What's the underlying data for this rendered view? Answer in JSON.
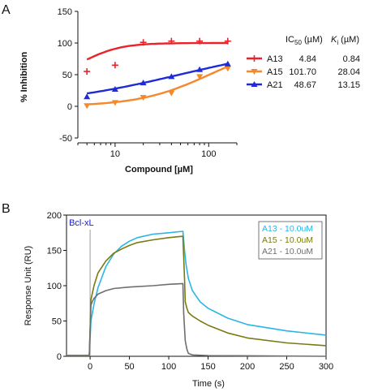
{
  "chart_data": [
    {
      "type": "scatter",
      "panel_label": "A",
      "xlabel": "Compound [µM]",
      "ylabel": "% Inhibition",
      "x_scale": "log",
      "xlim": [
        4,
        200
      ],
      "ylim": [
        -50,
        150
      ],
      "x_ticks": [
        {
          "value": 10,
          "label": "10"
        },
        {
          "value": 100,
          "label": "100"
        }
      ],
      "y_ticks": [
        {
          "value": -50,
          "label": "-50"
        },
        {
          "value": 0,
          "label": "0"
        },
        {
          "value": 50,
          "label": "50"
        },
        {
          "value": 100,
          "label": "100"
        },
        {
          "value": 150,
          "label": "150"
        }
      ],
      "grid": false,
      "legend_position": "right",
      "table_headers": {
        "ic50": "IC50 (µM)",
        "ki": "Ki (µM)"
      },
      "series": [
        {
          "name": "A13",
          "color": "#e8232a",
          "marker": "plus",
          "x": [
            5,
            10,
            20,
            40,
            80,
            160
          ],
          "y": [
            55,
            65,
            101,
            103,
            103,
            103
          ],
          "ic50": "4.84",
          "ki": "0.84",
          "fit": {
            "bottom": 46,
            "top": 100,
            "ec50": 4.84,
            "hill": 2.2
          }
        },
        {
          "name": "A15",
          "color": "#f5882a",
          "marker": "triangle-down",
          "x": [
            5,
            10,
            20,
            40,
            80,
            160
          ],
          "y": [
            1,
            6,
            14,
            21,
            47,
            60
          ],
          "ic50": "101.70",
          "ki": "28.04",
          "fit": {
            "bottom": 0,
            "top": 100,
            "ec50": 101.7,
            "hill": 1.15
          }
        },
        {
          "name": "A21",
          "color": "#1f2bd6",
          "marker": "triangle-up",
          "x": [
            5,
            10,
            20,
            40,
            80,
            160
          ],
          "y": [
            15,
            27,
            37,
            47,
            58,
            67
          ],
          "ic50": "48.67",
          "ki": "13.15",
          "fit": {
            "bottom": 0,
            "top": 100,
            "ec50": 48.67,
            "hill": 0.6
          }
        }
      ]
    },
    {
      "type": "line",
      "panel_label": "B",
      "xlabel": "Time (s)",
      "ylabel": "Response Unit (RU)",
      "xlim": [
        -30,
        300
      ],
      "ylim": [
        0,
        200
      ],
      "x_ticks": [
        0,
        50,
        100,
        150,
        200,
        250,
        300
      ],
      "y_ticks": [
        0,
        50,
        100,
        150,
        200
      ],
      "grid": false,
      "legend_position": "top-right",
      "annotation": {
        "text": "Bcl-xL",
        "x": 0
      },
      "series": [
        {
          "name": "A13 - 10.0uM",
          "color": "#29b6e6",
          "x": [
            -30,
            -1,
            1,
            5,
            10,
            20,
            30,
            40,
            50,
            60,
            80,
            100,
            118,
            120,
            122,
            125,
            130,
            140,
            150,
            175,
            200,
            250,
            300
          ],
          "y": [
            1,
            1,
            50,
            74,
            97,
            127,
            145,
            156,
            163,
            168,
            173,
            175,
            177,
            150,
            130,
            110,
            93,
            77,
            68,
            54,
            45,
            36,
            30
          ]
        },
        {
          "name": "A15 - 10.0uM",
          "color": "#7a7a12",
          "x": [
            -30,
            -1,
            1,
            5,
            10,
            20,
            30,
            40,
            50,
            60,
            80,
            100,
            118,
            120,
            121,
            123,
            125,
            130,
            140,
            150,
            175,
            200,
            250,
            300
          ],
          "y": [
            1,
            1,
            80,
            100,
            118,
            135,
            146,
            152,
            157,
            161,
            165,
            168,
            170,
            110,
            77,
            68,
            62,
            57,
            50,
            44,
            33,
            26,
            19,
            15
          ]
        },
        {
          "name": "A21 - 10.0uM",
          "color": "#6e6e6e",
          "x": [
            -30,
            -1,
            1,
            3,
            5,
            10,
            20,
            30,
            50,
            80,
            100,
            118,
            119,
            121,
            123,
            125,
            130,
            150,
            300
          ],
          "y": [
            1,
            1,
            72,
            78,
            82,
            88,
            93,
            96,
            98,
            100,
            102,
            103,
            60,
            22,
            10,
            4,
            2,
            1,
            0
          ]
        }
      ]
    }
  ]
}
